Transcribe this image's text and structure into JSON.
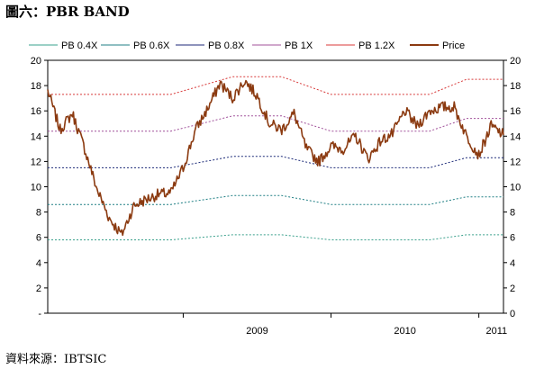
{
  "figure": {
    "title": "圖六：PBR BAND",
    "source": "資料來源：IBTSIC"
  },
  "chart_data": {
    "type": "line",
    "title": "PBR BAND",
    "xlabel": "",
    "ylabel": "",
    "ylim": [
      0,
      20
    ],
    "ytick_labels_left": [
      "-",
      "2",
      "4",
      "6",
      "8",
      "10",
      "12",
      "14",
      "16",
      "18",
      "20"
    ],
    "ytick_labels_right": [
      "0",
      "2",
      "4",
      "6",
      "8",
      "10",
      "12",
      "14",
      "16",
      "18",
      "20"
    ],
    "x_range": [
      "2008-02",
      "2011-03"
    ],
    "x_tick_labels": [
      "2009",
      "2010",
      "2011"
    ],
    "legend": {
      "placement": "top"
    },
    "grid": false,
    "band_multiples": [
      0.4,
      0.6,
      0.8,
      1.0,
      1.2
    ],
    "bvps_x": [
      "2008-02",
      "2008-12",
      "2009-05",
      "2009-09",
      "2010-01",
      "2010-09",
      "2010-12",
      "2011-03"
    ],
    "bvps": [
      14.4,
      14.4,
      15.6,
      15.6,
      14.4,
      14.4,
      15.4,
      15.4
    ],
    "series": [
      {
        "name": "PB  0.4X",
        "color": "#3aa08c",
        "style": "dashed",
        "x": [
          "2008-02",
          "2008-12",
          "2009-05",
          "2009-09",
          "2010-01",
          "2010-09",
          "2010-12",
          "2011-03"
        ],
        "values": [
          5.8,
          5.8,
          6.2,
          6.2,
          5.8,
          5.8,
          6.2,
          6.2
        ]
      },
      {
        "name": "PB  0.6X",
        "color": "#1f7f84",
        "style": "dashed",
        "x": [
          "2008-02",
          "2008-12",
          "2009-05",
          "2009-09",
          "2010-01",
          "2010-09",
          "2010-12",
          "2011-03"
        ],
        "values": [
          8.6,
          8.6,
          9.3,
          9.3,
          8.6,
          8.6,
          9.2,
          9.2
        ]
      },
      {
        "name": "PB  0.8X",
        "color": "#1c2a78",
        "style": "dashed",
        "x": [
          "2008-02",
          "2008-12",
          "2009-05",
          "2009-09",
          "2010-01",
          "2010-09",
          "2010-12",
          "2011-03"
        ],
        "values": [
          11.5,
          11.5,
          12.4,
          12.4,
          11.5,
          11.5,
          12.3,
          12.3
        ]
      },
      {
        "name": "PB  1X",
        "color": "#a0509a",
        "style": "dashed",
        "x": [
          "2008-02",
          "2008-12",
          "2009-05",
          "2009-09",
          "2010-01",
          "2010-09",
          "2010-12",
          "2011-03"
        ],
        "values": [
          14.4,
          14.4,
          15.6,
          15.6,
          14.4,
          14.4,
          15.4,
          15.4
        ]
      },
      {
        "name": "PB  1.2X",
        "color": "#d83a3a",
        "style": "dashed",
        "x": [
          "2008-02",
          "2008-12",
          "2009-05",
          "2009-09",
          "2010-01",
          "2010-09",
          "2010-12",
          "2011-03"
        ],
        "values": [
          17.3,
          17.3,
          18.7,
          18.7,
          17.3,
          17.3,
          18.5,
          18.5
        ]
      },
      {
        "name": "Price",
        "color": "#8b3a10",
        "style": "solid",
        "x": [
          "2008-02",
          "2008-03",
          "2008-04",
          "2008-05",
          "2008-06",
          "2008-07",
          "2008-08",
          "2008-09",
          "2008-10",
          "2008-11",
          "2008-12",
          "2009-01",
          "2009-02",
          "2009-03",
          "2009-04",
          "2009-05",
          "2009-06",
          "2009-07",
          "2009-08",
          "2009-09",
          "2009-10",
          "2009-11",
          "2009-12",
          "2010-01",
          "2010-02",
          "2010-03",
          "2010-04",
          "2010-05",
          "2010-06",
          "2010-07",
          "2010-08",
          "2010-09",
          "2010-10",
          "2010-11",
          "2010-12",
          "2011-01",
          "2011-02",
          "2011-03"
        ],
        "values": [
          17.6,
          14.5,
          15.8,
          13.0,
          9.8,
          7.5,
          6.2,
          8.5,
          9.0,
          9.4,
          9.5,
          11.5,
          14.5,
          16.2,
          18.2,
          17.0,
          18.4,
          17.2,
          15.0,
          14.5,
          15.8,
          13.0,
          12.0,
          13.2,
          13.0,
          14.0,
          12.2,
          13.6,
          14.2,
          16.0,
          14.8,
          16.0,
          16.3,
          16.3,
          14.0,
          12.5,
          14.8,
          14.1
        ]
      }
    ]
  }
}
